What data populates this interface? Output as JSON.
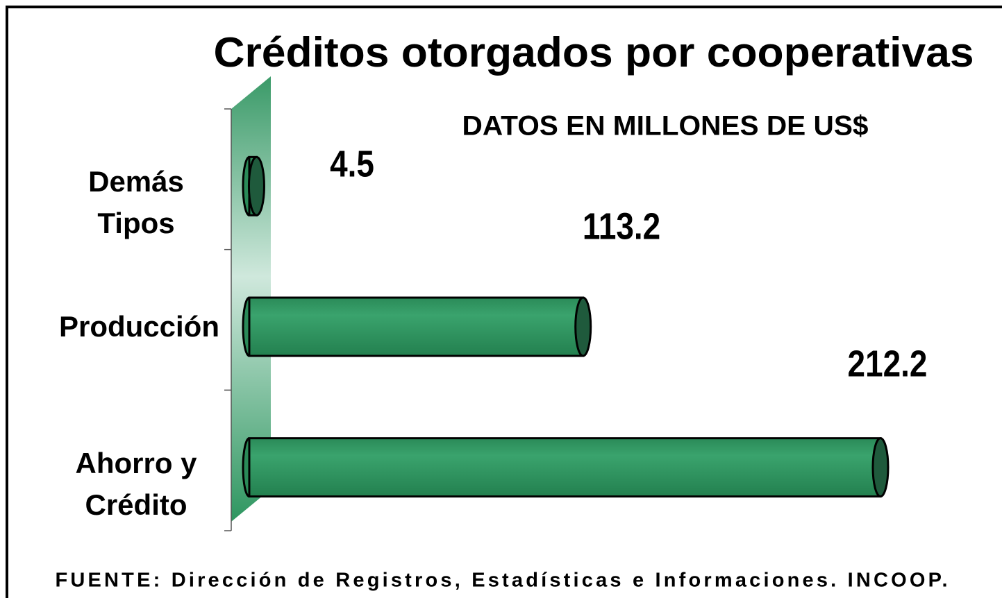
{
  "chart_data": {
    "type": "bar",
    "orientation": "horizontal",
    "title": "Créditos otorgados por cooperativas",
    "subtitle": "DATOS EN MILLONES DE US$",
    "source": "FUENTE: Dirección de Registros, Estadísticas e Informaciones. INCOOP.",
    "categories": [
      "Demás Tipos",
      "Producción",
      "Ahorro y Crédito"
    ],
    "values": [
      4.5,
      113.2,
      212.2
    ],
    "color": "#2e9660"
  }
}
